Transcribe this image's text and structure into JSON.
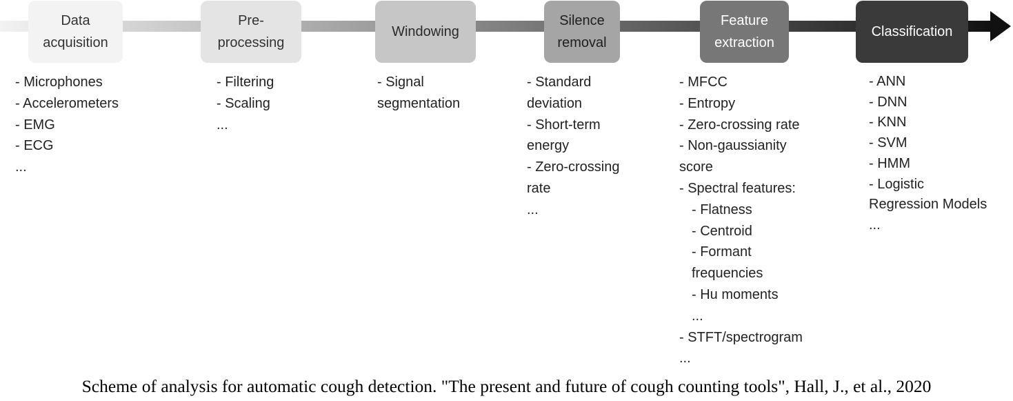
{
  "colors": {
    "arrow_start": "#f2f2f2",
    "arrow_end": "#111111",
    "stage_fills": [
      "#f3f3f3",
      "#e4e4e4",
      "#c6c6c6",
      "#a5a5a5",
      "#777777",
      "#3a3a3a"
    ],
    "stage_text": [
      "#333333",
      "#333333",
      "#2a2a2a",
      "#1f1f1f",
      "#ffffff",
      "#ffffff"
    ]
  },
  "stages": [
    {
      "label": "Data\nacquisition",
      "items": [
        "- Microphones",
        "- Accelerometers",
        "- EMG",
        "- ECG",
        "..."
      ]
    },
    {
      "label": "Pre-\nprocessing",
      "items": [
        "- Filtering",
        "- Scaling",
        "..."
      ]
    },
    {
      "label": "Windowing",
      "items": [
        "- Signal",
        "segmentation"
      ]
    },
    {
      "label": "Silence\nremoval",
      "items": [
        "- Standard",
        "deviation",
        "- Short-term",
        "energy",
        "- Zero-crossing",
        "rate",
        "..."
      ]
    },
    {
      "label": "Feature\nextraction",
      "items": [
        "- MFCC",
        "- Entropy",
        "- Zero-crossing rate",
        "- Non-gaussianity",
        "score",
        "- Spectral features:",
        "- Flatness",
        "- Centroid",
        "- Formant",
        "frequencies",
        "- Hu moments",
        "...",
        "- STFT/spectrogram",
        "..."
      ],
      "indented": [
        6,
        7,
        8,
        9,
        10,
        11
      ]
    },
    {
      "label": "Classification",
      "items": [
        "- ANN",
        "- DNN",
        "- KNN",
        "- SVM",
        "- HMM",
        "- Logistic",
        "Regression Models",
        "..."
      ]
    }
  ],
  "caption": "Scheme of analysis for automatic cough detection. \"The present and future of cough counting tools\", Hall, J., et al., 2020"
}
